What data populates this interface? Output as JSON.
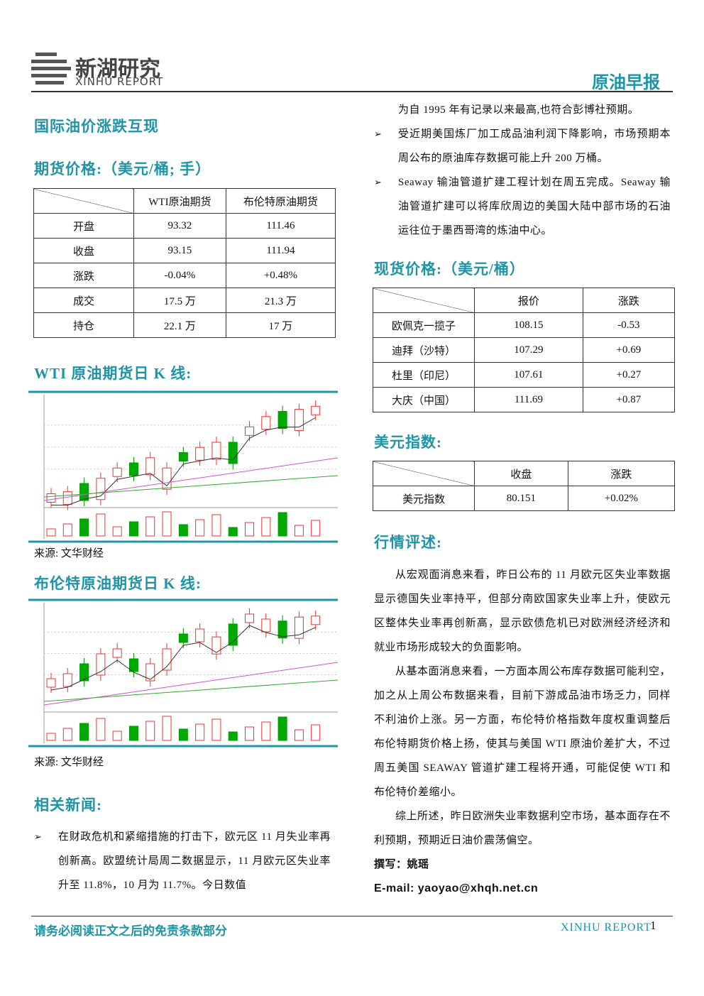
{
  "header": {
    "logo_cn": "新湖研究",
    "logo_en": "XINHU REPORT",
    "report_title": "原油早报"
  },
  "headline": "国际油价涨跌互现",
  "futures": {
    "heading": "期货价格:（美元/桶; 手）",
    "columns": [
      "WTI原油期货",
      "布伦特原油期货"
    ],
    "rows": [
      [
        "开盘",
        "93.32",
        "111.46"
      ],
      [
        "收盘",
        "93.15",
        "111.94"
      ],
      [
        "涨跌",
        "-0.04%",
        "+0.48%"
      ],
      [
        "成交",
        "17.5 万",
        "21.3 万"
      ],
      [
        "持仓",
        "22.1 万",
        "17 万"
      ]
    ]
  },
  "wti_chart": {
    "heading": "WTI 原油期货日 K 线:",
    "source": "来源: 文华财经"
  },
  "brent_chart": {
    "heading": "布伦特原油期货日 K 线:",
    "source": "来源: 文华财经"
  },
  "news": {
    "heading": "相关新闻:",
    "items": [
      [
        "在财政危机和紧缩措施的打击下，欧元区 11 月失业率再创新高。欧盟统计局周二数据显示，11 月欧元区失业率升至 11.8%，10 月为 11.7%。今日数值",
        "为自 1995 年有记录以来最高,也符合彭博社预期。"
      ],
      [
        "受近期美国炼厂加工成品油利润下降影响，市场预期本周公布的原油库存数据可能上升 200 万桶。"
      ],
      [
        "Seaway 输油管道扩建工程计划在周五完成。Seaway 输油管道扩建可以将库欣周边的美国大陆中部市场的石油运往位于墨西哥湾的炼油中心。"
      ]
    ]
  },
  "spot": {
    "heading": "现货价格:（美元/桶）",
    "columns": [
      "报价",
      "涨跌"
    ],
    "rows": [
      [
        "欧佩克一揽子",
        "108.15",
        "-0.53"
      ],
      [
        "迪拜（沙特）",
        "107.29",
        "+0.69"
      ],
      [
        "杜里（印尼）",
        "107.61",
        "+0.27"
      ],
      [
        "大庆（中国）",
        "111.69",
        "+0.87"
      ]
    ]
  },
  "dollar": {
    "heading": "美元指数:",
    "columns": [
      "收盘",
      "涨跌"
    ],
    "rows": [
      [
        "美元指数",
        "80.151",
        "+0.02%"
      ]
    ]
  },
  "commentary": {
    "heading": "行情评述:",
    "paragraphs": [
      "从宏观面消息来看，昨日公布的 11 月欧元区失业率数据显示德国失业率持平，但部分南欧国家失业率上升，使欧元区整体失业率再创新高，显示欧债危机已对欧洲经济经济和就业市场形成较大的负面影响。",
      "从基本面消息来看，一方面本周公布库存数据可能利空，加之从上周公布数据来看，目前下游成品油市场乏力，同样不利油价上涨。另一方面，布伦特价格指数年度权重调整后布伦特期货价格上扬，使其与美国 WTI 原油价差扩大，不过周五美国 SEAWAY 管道扩建工程将开通，可能促使 WTI 和布伦特价差缩小。",
      "综上所述，昨日欧洲失业率数据利空市场，基本面存在不利预期，预期近日油价震荡偏空。"
    ],
    "author": "撰写：姚瑶",
    "email": "E-mail: yaoyao@xhqh.net.cn"
  },
  "footer": {
    "disclaimer": "请务必阅读正文之后的免责条款部分",
    "brand": "XINHU REPORT",
    "page": "1"
  }
}
